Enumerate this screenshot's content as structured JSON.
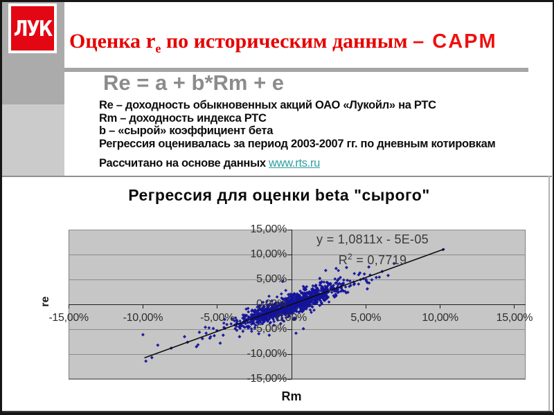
{
  "slide": {
    "logo_text": "ЛУК"
  },
  "title": {
    "word1": "Оценка ",
    "r": "r",
    "sub": "e",
    "rest": " по историческим данным ",
    "dash_capm": "– CAPM"
  },
  "heading": "Re = a + b*Rm + e",
  "notes": [
    "Re – доходность обыкновенных акций ОАО «Лукойл» на РТС",
    "Rm – доходность индекса РТС",
    "b – «сырой» коэффициент бета",
    "Регрессия оценивалась за период 2003-2007 гг. по дневным котировкам"
  ],
  "source": {
    "text": "Рассчитано на основе данных ",
    "link": "www.rts.ru"
  },
  "chart_data": {
    "type": "scatter",
    "title": "Регрессия для оценки beta \"сырого\"",
    "xlabel": "Rm",
    "ylabel": "re",
    "equation": "y = 1,0811x - 5E-05",
    "r2_prefix": "R",
    "r2_sup": "2",
    "r2_rest": " = 0,7719",
    "slope": 1.0811,
    "intercept_pct": -0.005,
    "r_squared": 0.7719,
    "xlim": [
      -15,
      15
    ],
    "ylim": [
      -15,
      15
    ],
    "grid": "horizontal-only",
    "ticks": [
      {
        "v": 15,
        "label": "15,00%"
      },
      {
        "v": 10,
        "label": "10,00%"
      },
      {
        "v": 5,
        "label": "5,00%"
      },
      {
        "v": 0,
        "label": "0,00%"
      },
      {
        "v": -5,
        "label": "-5,00%"
      },
      {
        "v": -10,
        "label": "-10,00%"
      },
      {
        "v": -15,
        "label": "-15,00%"
      }
    ],
    "marker_color": "#14149a",
    "line_color": "#0d0d0d",
    "plot_bg_color": "#c6c6c6",
    "regression_line": {
      "x1": -9.9,
      "y1": -10.75,
      "x2": 10.3,
      "y2": 11.13
    },
    "scatter": {
      "seed": 7,
      "n": 1050,
      "sd_x": 1.75,
      "sd_residual": 1.0,
      "outliers": [
        [
          -9.8,
          -11.4
        ],
        [
          -9.4,
          -10.7
        ],
        [
          -10.0,
          -6.1
        ],
        [
          -9.0,
          -8.2
        ],
        [
          -8.1,
          -8.8
        ],
        [
          -6.4,
          -8.5
        ],
        [
          -5.8,
          -4.6
        ],
        [
          -4.8,
          -7.8
        ],
        [
          -6.0,
          -6.9
        ],
        [
          -5.2,
          -6.3
        ],
        [
          -7.0,
          -7.6
        ],
        [
          -7.2,
          -6.5
        ],
        [
          -6.2,
          -5.6
        ],
        [
          -5.5,
          -6.8
        ],
        [
          -4.6,
          -6.2
        ],
        [
          -3.5,
          -6.5
        ],
        [
          -2.2,
          -5.9
        ],
        [
          -1.5,
          -6.2
        ],
        [
          0.3,
          -5.8
        ],
        [
          0.8,
          -4.9
        ],
        [
          10.2,
          11.0
        ],
        [
          6.9,
          8.2
        ],
        [
          5.2,
          7.5
        ],
        [
          3.7,
          7.4
        ],
        [
          3.0,
          7.2
        ],
        [
          2.3,
          6.8
        ],
        [
          4.6,
          6.3
        ],
        [
          6.1,
          6.6
        ],
        [
          5.7,
          5.4
        ],
        [
          6.5,
          5.8
        ],
        [
          5.1,
          4.4
        ],
        [
          5.1,
          3.1
        ],
        [
          4.9,
          6.1
        ],
        [
          1.9,
          5.2
        ],
        [
          -0.6,
          4.6
        ]
      ]
    }
  }
}
